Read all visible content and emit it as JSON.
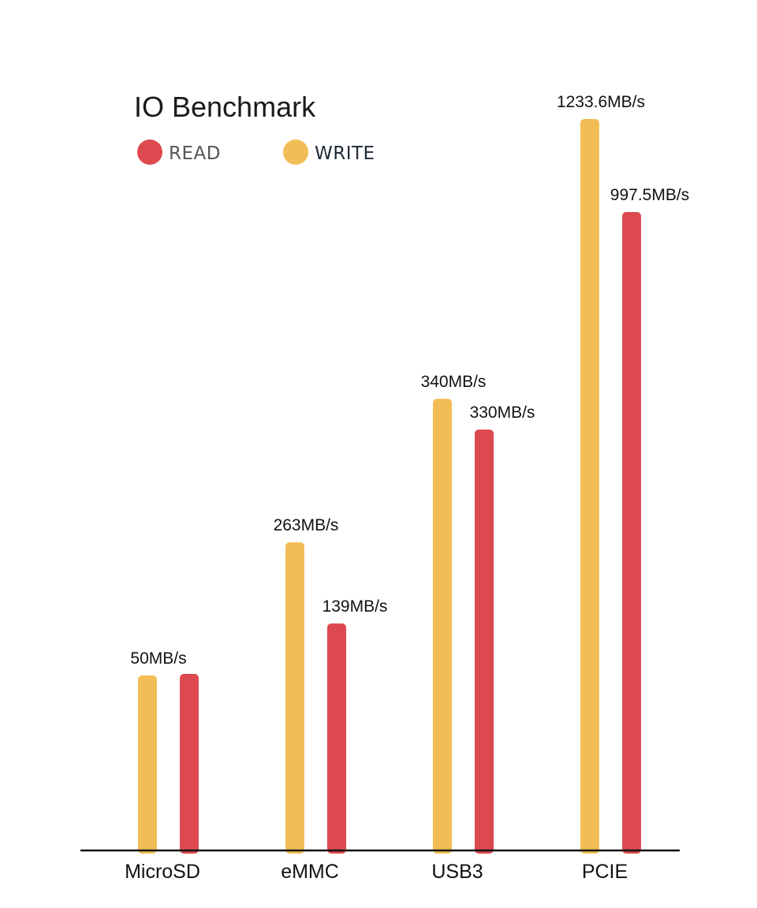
{
  "chart_data": {
    "type": "bar",
    "title": "IO Benchmark",
    "categories": [
      "MicroSD",
      "eMMC",
      "USB3",
      "PCIE"
    ],
    "series": [
      {
        "name": "WRITE",
        "color": "#f2bd55",
        "values": [
          50,
          263,
          340,
          1233.6
        ]
      },
      {
        "name": "READ",
        "color": "#dc4a4f",
        "values": [
          50,
          139,
          330,
          997.5
        ]
      }
    ],
    "value_labels": [
      [
        "50MB/s",
        "263MB/s",
        "340MB/s",
        "1233.6MB/s"
      ],
      [
        "",
        "139MB/s",
        "330MB/s",
        "997.5MB/s"
      ]
    ],
    "legend": [
      {
        "label": "READ",
        "color": "#dc4a4f",
        "text_color": "#555555"
      },
      {
        "label": "WRITE",
        "color": "#f2bd55",
        "text_color": "#1f2a36"
      }
    ],
    "legend_position": "top-left",
    "xlabel": "",
    "ylabel": "",
    "grid": false,
    "axis_color": "#111111"
  }
}
